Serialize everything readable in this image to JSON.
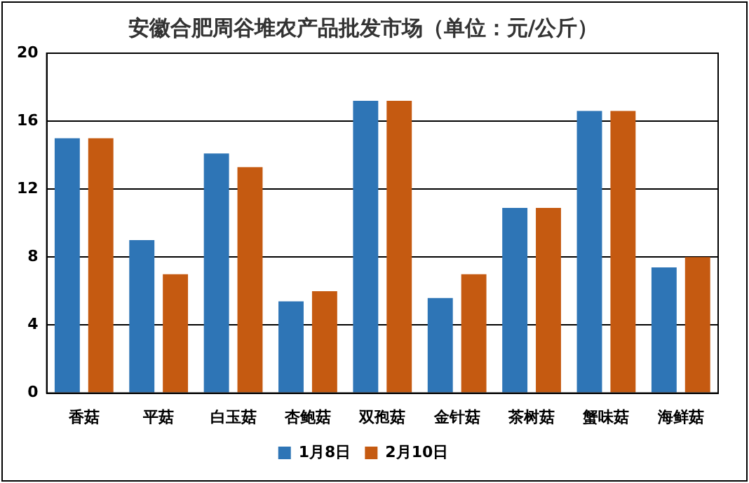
{
  "chart_data": {
    "type": "bar",
    "title": "安徽合肥周谷堆农产品批发市场（单位：元/公斤）",
    "categories": [
      "香菇",
      "平菇",
      "白玉菇",
      "杏鲍菇",
      "双孢菇",
      "金针菇",
      "茶树菇",
      "蟹味菇",
      "海鲜菇"
    ],
    "series": [
      {
        "name": "1月8日",
        "color": "#2e75b6",
        "values": [
          15,
          9,
          14.1,
          5.4,
          17.2,
          5.6,
          10.9,
          16.6,
          7.4
        ]
      },
      {
        "name": "2月10日",
        "color": "#c55a11",
        "values": [
          15,
          7,
          13.3,
          6,
          17.2,
          7,
          10.9,
          16.6,
          8
        ]
      }
    ],
    "ylim": [
      0,
      20
    ],
    "yticks": [
      0,
      4,
      8,
      12,
      16,
      20
    ],
    "grid": "y",
    "legend": "bottom"
  }
}
